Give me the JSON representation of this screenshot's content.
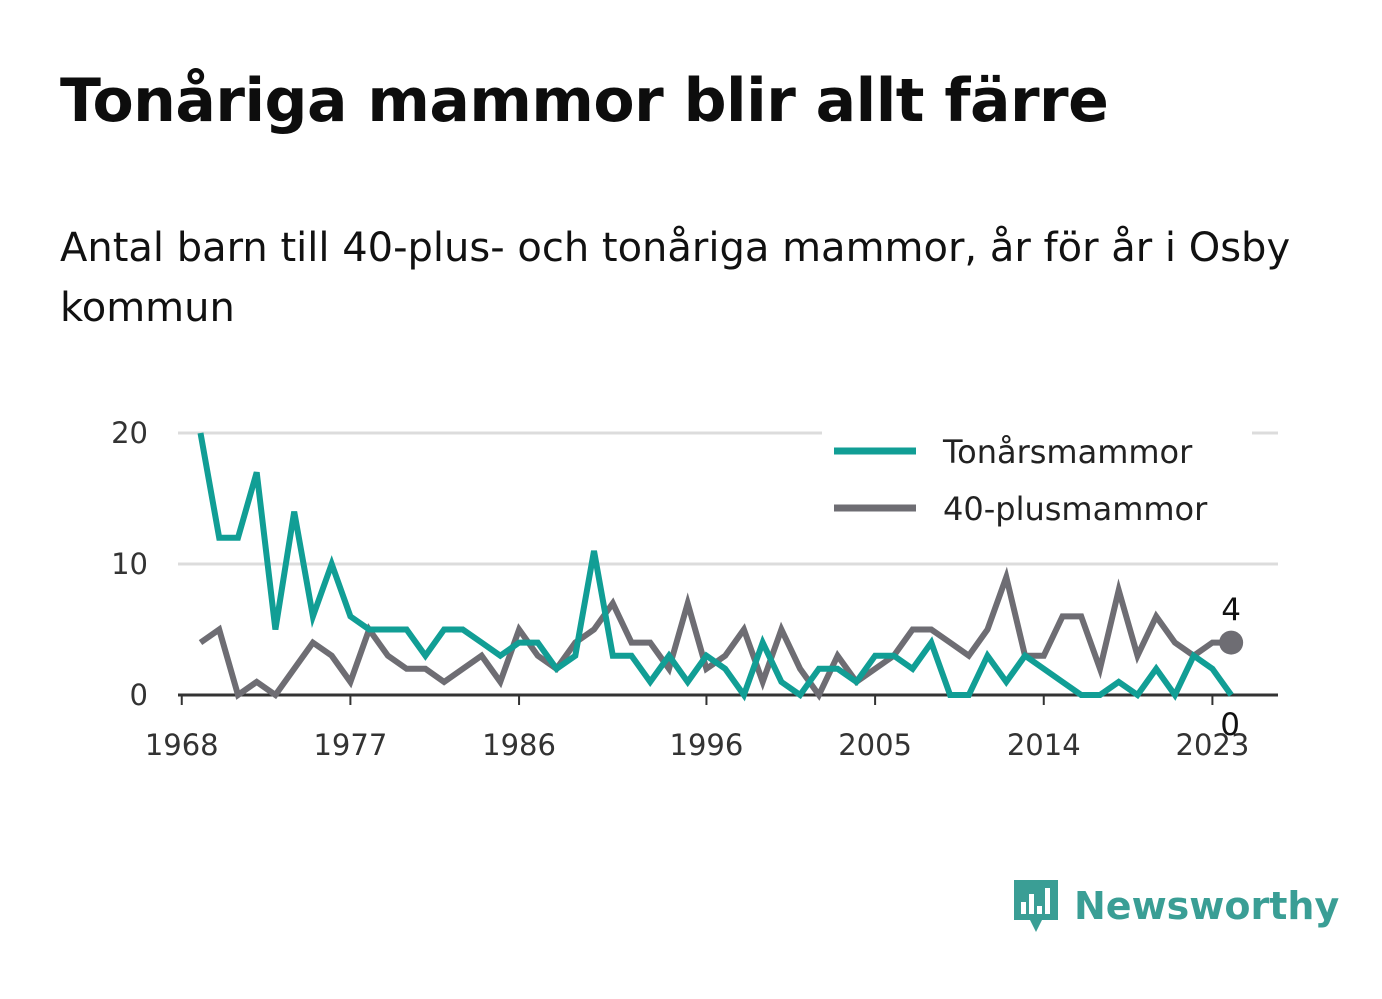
{
  "title": "Tonåriga mammor blir allt färre",
  "subtitle": "Antal barn till 40-plus- och tonåriga mammor, år för år i Osby kommun",
  "brand": {
    "name": "Newsworthy",
    "icon": "newsworthy-logo-icon",
    "color": "#3a9e95"
  },
  "chart_data": {
    "type": "line",
    "title": "Tonåriga mammor blir allt färre",
    "subtitle": "Antal barn till 40-plus- och tonåriga mammor, år för år i Osby kommun",
    "xlabel": "",
    "ylabel": "",
    "x": [
      1969,
      1970,
      1971,
      1972,
      1973,
      1974,
      1975,
      1976,
      1977,
      1978,
      1979,
      1980,
      1981,
      1982,
      1983,
      1984,
      1985,
      1986,
      1987,
      1988,
      1989,
      1990,
      1991,
      1992,
      1993,
      1994,
      1995,
      1996,
      1997,
      1998,
      1999,
      2000,
      2001,
      2002,
      2003,
      2004,
      2005,
      2006,
      2007,
      2008,
      2009,
      2010,
      2011,
      2012,
      2013,
      2014,
      2015,
      2016,
      2017,
      2018,
      2019,
      2020,
      2021,
      2022,
      2023,
      2024
    ],
    "xlim": [
      1967.8,
      2026.5
    ],
    "ylim": [
      0,
      20
    ],
    "xticks": [
      "1968",
      "1977",
      "1986",
      "1996",
      "2005",
      "2014",
      "2023"
    ],
    "xtick_values": [
      1968,
      1977,
      1986,
      1996,
      2005,
      2014,
      2023
    ],
    "yticks": [
      "0",
      "10",
      "20"
    ],
    "ytick_values": [
      0,
      10,
      20
    ],
    "grid": true,
    "legend_position": "top-right",
    "series": [
      {
        "name": "Tonårsmammor",
        "color": "#119e95",
        "values": [
          20,
          12,
          12,
          17,
          5,
          14,
          6,
          10,
          6,
          5,
          5,
          5,
          3,
          5,
          5,
          4,
          3,
          4,
          4,
          2,
          3,
          11,
          3,
          3,
          1,
          3,
          1,
          3,
          2,
          0,
          4,
          1,
          0,
          2,
          2,
          1,
          3,
          3,
          2,
          4,
          0,
          0,
          3,
          1,
          3,
          2,
          1,
          0,
          0,
          1,
          0,
          2,
          0,
          3,
          2,
          0
        ],
        "end_label": "0"
      },
      {
        "name": "40-plusmammor",
        "color": "#6e6d73",
        "values": [
          4,
          5,
          0,
          1,
          0,
          2,
          4,
          3,
          1,
          5,
          3,
          2,
          2,
          1,
          2,
          3,
          1,
          5,
          3,
          2,
          4,
          5,
          7,
          4,
          4,
          2,
          7,
          2,
          3,
          5,
          1,
          5,
          2,
          0,
          3,
          1,
          2,
          3,
          5,
          5,
          4,
          3,
          5,
          9,
          3,
          3,
          6,
          6,
          2,
          8,
          3,
          6,
          4,
          3,
          4,
          4
        ],
        "end_label": "4"
      }
    ]
  }
}
